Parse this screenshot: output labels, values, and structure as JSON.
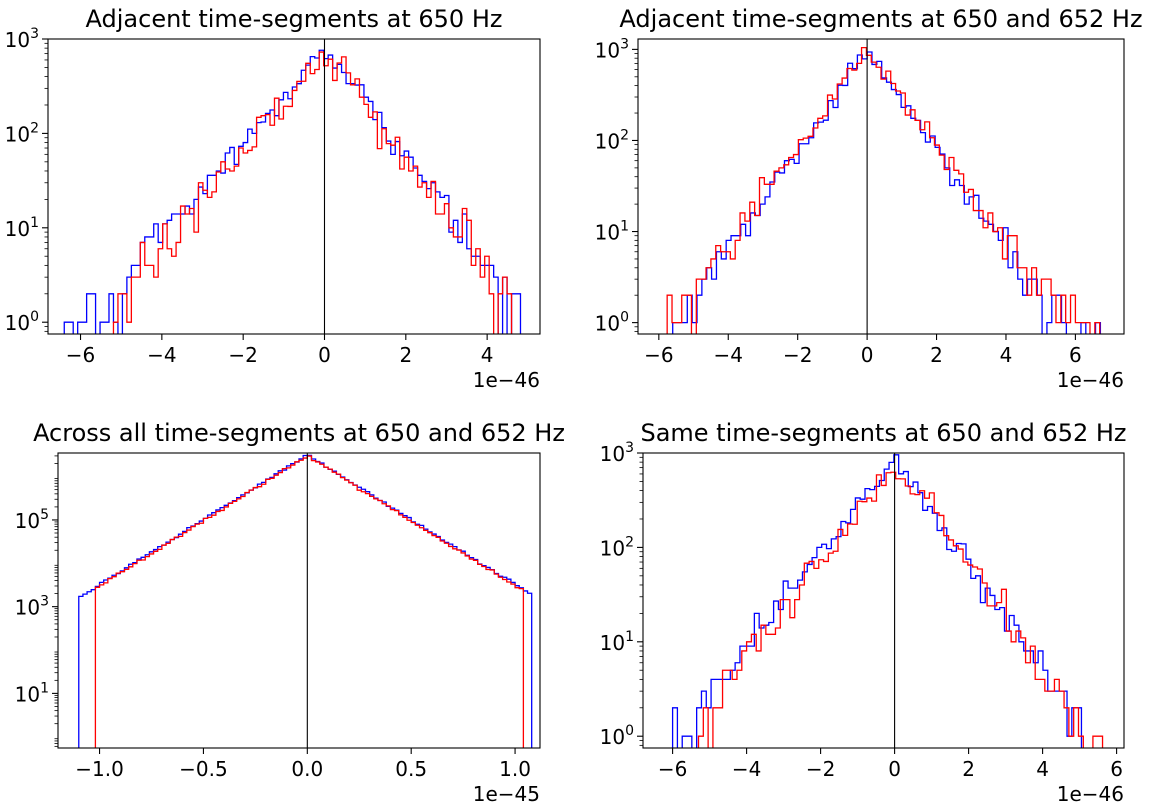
{
  "chart_data": [
    {
      "type": "histogram",
      "title": "Adjacent time-segments at 650 Hz",
      "xlabel": "",
      "ylabel": "",
      "x_offset_label": "1e−46",
      "xlim": [
        -6.8,
        5.3
      ],
      "ylim": [
        0.75,
        1000
      ],
      "yscale": "log",
      "grid": false,
      "xticks": [
        -6,
        -4,
        -2,
        0,
        2,
        4
      ],
      "xtick_labels": [
        "−6",
        "−4",
        "−2",
        "0",
        "2",
        "4"
      ],
      "ytick_labels": [
        "10^0",
        "10^1",
        "10^2",
        "10^3"
      ],
      "vline_x": 0,
      "series": [
        {
          "color": "#0000ff",
          "bin_width": 0.11,
          "x_min": -6.4,
          "x_max": 4.75,
          "peak_x": 0.0,
          "peak_count": 760,
          "decay_left": 0.88,
          "decay_right": 0.78,
          "noise": 0.2
        },
        {
          "color": "#ff0000",
          "bin_width": 0.11,
          "x_min": -5.3,
          "x_max": 4.6,
          "peak_x": 0.05,
          "peak_count": 700,
          "decay_left": 0.86,
          "decay_right": 0.76,
          "noise": 0.28
        }
      ]
    },
    {
      "type": "histogram",
      "title": "Adjacent time-segments at 650 and 652 Hz",
      "xlabel": "",
      "ylabel": "",
      "x_offset_label": "1e−46",
      "xlim": [
        -6.6,
        7.4
      ],
      "ylim": [
        0.75,
        1300
      ],
      "yscale": "log",
      "grid": false,
      "xticks": [
        -6,
        -4,
        -2,
        0,
        2,
        4,
        6
      ],
      "xtick_labels": [
        "−6",
        "−4",
        "−2",
        "0",
        "2",
        "4",
        "6"
      ],
      "ytick_labels": [
        "10^0",
        "10^1",
        "10^2",
        "10^3"
      ],
      "vline_x": 0,
      "series": [
        {
          "color": "#0000ff",
          "bin_width": 0.14,
          "x_min": -5.6,
          "x_max": 6.7,
          "peak_x": 0.0,
          "peak_count": 950,
          "decay_left": 0.8,
          "decay_right": 0.8,
          "noise": 0.18
        },
        {
          "color": "#ff0000",
          "bin_width": 0.14,
          "x_min": -5.9,
          "x_max": 6.7,
          "peak_x": 0.0,
          "peak_count": 1000,
          "decay_left": 0.82,
          "decay_right": 0.82,
          "noise": 0.24
        }
      ]
    },
    {
      "type": "histogram",
      "title": "Across all time-segments at 650 and 652 Hz",
      "xlabel": "",
      "ylabel": "",
      "x_offset_label": "1e−45",
      "xlim": [
        -1.2,
        1.12
      ],
      "ylim": [
        0.55,
        3500000
      ],
      "yscale": "log",
      "grid": false,
      "xticks": [
        -1.0,
        -0.5,
        0.0,
        0.5,
        1.0
      ],
      "xtick_labels": [
        "−1.0",
        "−0.5",
        "0.0",
        "0.5",
        "1.0"
      ],
      "ytick_labels": [
        "10^1",
        "10^3",
        "10^5"
      ],
      "vline_x": 0,
      "series": [
        {
          "color": "#0000ff",
          "bin_width": 0.02,
          "x_min": -1.1,
          "x_max": 1.08,
          "peak_x": 0.0,
          "peak_count": 3200000,
          "decay_left": 0.145,
          "decay_right": 0.145,
          "noise": 0.04
        },
        {
          "color": "#ff0000",
          "bin_width": 0.02,
          "x_min": -1.02,
          "x_max": 1.04,
          "peak_x": 0.0,
          "peak_count": 3000000,
          "decay_left": 0.145,
          "decay_right": 0.145,
          "noise": 0.05
        }
      ]
    },
    {
      "type": "histogram",
      "title": "Same time-segments at 650 and 652 Hz",
      "xlabel": "",
      "ylabel": "",
      "x_offset_label": "1e−46",
      "xlim": [
        -6.8,
        6.2
      ],
      "ylim": [
        0.75,
        1000
      ],
      "yscale": "log",
      "grid": false,
      "xticks": [
        -6,
        -4,
        -2,
        0,
        2,
        4,
        6
      ],
      "xtick_labels": [
        "−6",
        "−4",
        "−2",
        "0",
        "2",
        "4",
        "6"
      ],
      "ytick_labels": [
        "10^0",
        "10^1",
        "10^2",
        "10^3"
      ],
      "vline_x": 0,
      "series": [
        {
          "color": "#0000ff",
          "bin_width": 0.13,
          "x_min": -6.0,
          "x_max": 5.0,
          "peak_x": 0.0,
          "peak_count": 800,
          "decay_left": 0.88,
          "decay_right": 0.8,
          "noise": 0.2
        },
        {
          "color": "#ff0000",
          "bin_width": 0.13,
          "x_min": -5.3,
          "x_max": 5.5,
          "peak_x": 0.05,
          "peak_count": 780,
          "decay_left": 0.86,
          "decay_right": 0.78,
          "noise": 0.28
        }
      ]
    }
  ]
}
